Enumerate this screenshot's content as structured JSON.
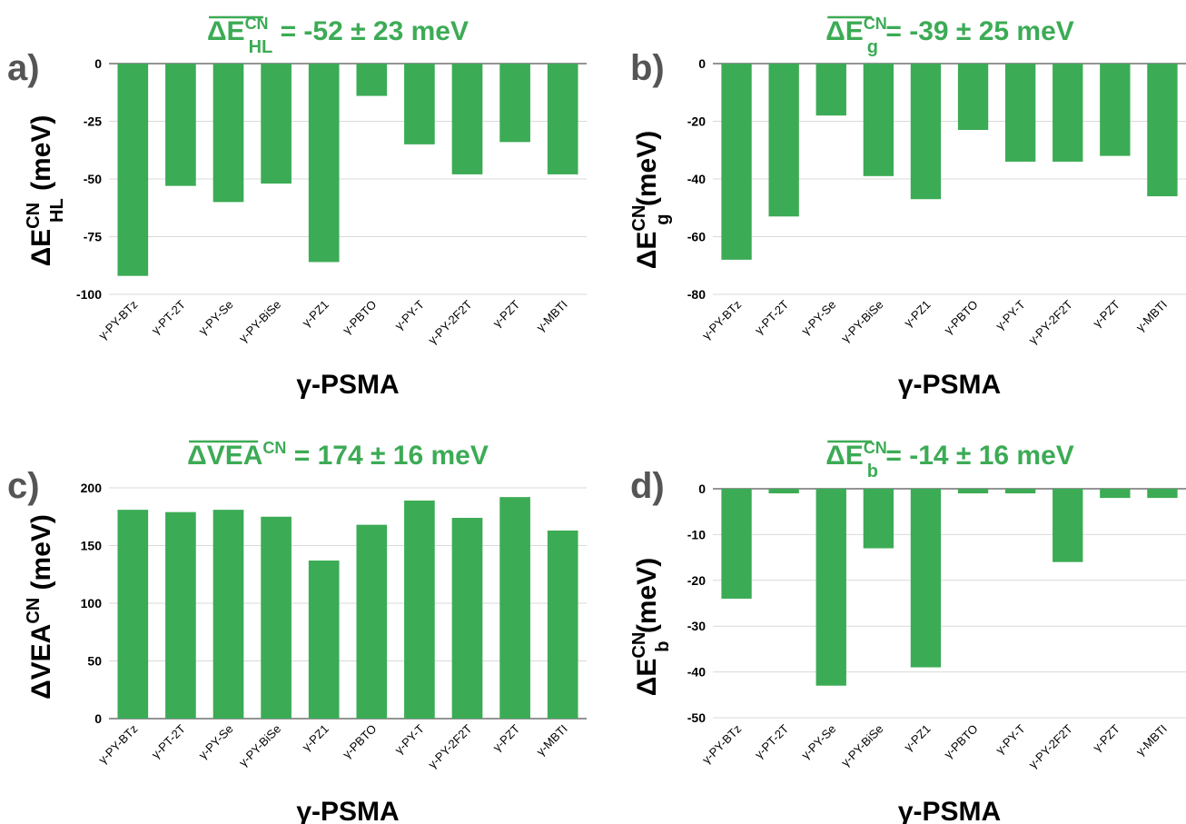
{
  "colors": {
    "bar": "#3cab55",
    "title": "#3cab55",
    "grid": "#d9d9d9",
    "panel_label": "#555555"
  },
  "chart_data": [
    {
      "panel": "a)",
      "type": "bar",
      "title": {
        "main": "ΔE",
        "sub": "HL",
        "sup": "CN",
        "rest": " = -52 ± 23 meV"
      },
      "ylabel": {
        "main": "ΔE",
        "sub": "HL",
        "sup": "CN",
        "rest": " (meV)"
      },
      "xlabel": "γ-PSMA",
      "ylim": [
        -100,
        0
      ],
      "yticks": [
        0,
        -25,
        -50,
        -75,
        -100
      ],
      "grid": true,
      "categories": [
        "γ-PY-BTz",
        "γ-PT-2T",
        "γ-PY-Se",
        "γ-PY-BiSe",
        "γ-PZ1",
        "γ-PBTO",
        "γ-PY-T",
        "γ-PY-2F2T",
        "γ-PZT",
        "γ-MBTI"
      ],
      "values": [
        -92,
        -53,
        -60,
        -52,
        -86,
        -14,
        -35,
        -48,
        -34,
        -48
      ]
    },
    {
      "panel": "b)",
      "type": "bar",
      "title": {
        "main": "ΔE",
        "sub": "g",
        "sup": "CN",
        "rest": " = -39 ± 25 meV"
      },
      "ylabel": {
        "main": "ΔE",
        "sub": "g",
        "sup": "CN",
        "rest": " (meV)"
      },
      "xlabel": "γ-PSMA",
      "ylim": [
        -80,
        0
      ],
      "yticks": [
        0,
        -20,
        -40,
        -60,
        -80
      ],
      "grid": true,
      "categories": [
        "γ-PY-BTz",
        "γ-PT-2T",
        "γ-PY-Se",
        "γ-PY-BiSe",
        "γ-PZ1",
        "γ-PBTO",
        "γ-PY-T",
        "γ-PY-2F2T",
        "γ-PZT",
        "γ-MBTI"
      ],
      "values": [
        -68,
        -53,
        -18,
        -39,
        -47,
        -23,
        -34,
        -34,
        -32,
        -46
      ]
    },
    {
      "panel": "c)",
      "type": "bar",
      "title": {
        "main": "ΔVEA",
        "sub": "",
        "sup": "CN",
        "rest": " = 174 ± 16 meV"
      },
      "ylabel": {
        "main": "ΔVEA",
        "sub": "",
        "sup": "CN",
        "rest": " (meV)"
      },
      "xlabel": "γ-PSMA",
      "ylim": [
        0,
        200
      ],
      "yticks": [
        0,
        50,
        100,
        150,
        200
      ],
      "grid": true,
      "categories": [
        "γ-PY-BTz",
        "γ-PT-2T",
        "γ-PY-Se",
        "γ-PY-BiSe",
        "γ-PZ1",
        "γ-PBTO",
        "γ-PY-T",
        "γ-PY-2F2T",
        "γ-PZT",
        "γ-MBTI"
      ],
      "values": [
        181,
        179,
        181,
        175,
        137,
        168,
        189,
        174,
        192,
        163
      ]
    },
    {
      "panel": "d)",
      "type": "bar",
      "title": {
        "main": "ΔE",
        "sub": "b",
        "sup": "CN",
        "rest": " = -14 ± 16 meV"
      },
      "ylabel": {
        "main": "ΔE",
        "sub": "b",
        "sup": "CN",
        "rest": " (meV)"
      },
      "xlabel": "γ-PSMA",
      "ylim": [
        -50,
        0
      ],
      "yticks": [
        0,
        -10,
        -20,
        -30,
        -40,
        -50
      ],
      "grid": true,
      "categories": [
        "γ-PY-BTz",
        "γ-PT-2T",
        "γ-PY-Se",
        "γ-PY-BiSe",
        "γ-PZ1",
        "γ-PBTO",
        "γ-PY-T",
        "γ-PY-2F2T",
        "γ-PZT",
        "γ-MBTI"
      ],
      "values": [
        -24,
        -1,
        -43,
        -13,
        -39,
        -1,
        -1,
        -16,
        -2,
        -2
      ]
    }
  ]
}
